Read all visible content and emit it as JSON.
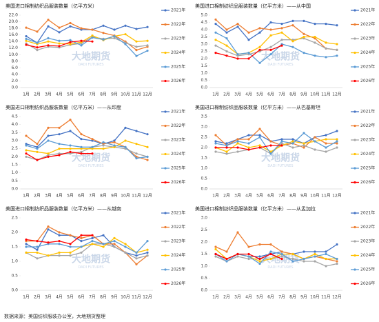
{
  "chart_data": [
    {
      "type": "line",
      "title": "美国进口棉制纺织品服装数量（亿平方米）",
      "categories": [
        "1月",
        "2月",
        "3月",
        "4月",
        "5月",
        "6月",
        "7月",
        "8月",
        "9月",
        "10月",
        "11月",
        "12月"
      ],
      "ylim": [
        0,
        22
      ],
      "yticks": [
        {
          "value": 0,
          "label": "0.0"
        },
        {
          "value": 2,
          "label": "2.0"
        },
        {
          "value": 4,
          "label": "4.0"
        },
        {
          "value": 6,
          "label": "6.0"
        },
        {
          "value": 8,
          "label": "8.0"
        },
        {
          "value": 10,
          "label": "10.0"
        },
        {
          "value": 12,
          "label": "12.0"
        },
        {
          "value": 14,
          "label": "14.0"
        },
        {
          "value": 16,
          "label": "16.0"
        },
        {
          "value": 18,
          "label": "18.0"
        },
        {
          "value": 20,
          "label": "20.0"
        },
        {
          "value": 22,
          "label": "22.0"
        }
      ],
      "legend": "right",
      "series": [
        {
          "name": "2021年",
          "color": "#4472c4",
          "values": [
            15.6,
            13.6,
            18.6,
            16.8,
            18.6,
            17.6,
            17.6,
            18.8,
            17.6,
            18.8,
            17.8,
            18.4
          ]
        },
        {
          "name": "2022年",
          "color": "#ed7d31",
          "values": [
            18.2,
            17.0,
            20.6,
            18.2,
            19.6,
            18.0,
            17.6,
            16.6,
            15.8,
            14.0,
            11.4,
            12.4
          ]
        },
        {
          "name": "2023年",
          "color": "#a5a5a5",
          "values": [
            13.4,
            11.4,
            12.4,
            12.2,
            13.0,
            13.4,
            15.4,
            14.8,
            15.0,
            13.6,
            12.4,
            12.8
          ]
        },
        {
          "name": "2024年",
          "color": "#ffc000",
          "values": [
            14.2,
            13.2,
            14.0,
            13.4,
            13.2,
            13.8,
            15.8,
            14.4,
            15.6,
            16.2,
            14.0,
            14.2
          ]
        },
        {
          "name": "2025年",
          "color": "#5b9bd5",
          "values": [
            14.8,
            13.6,
            15.0,
            14.2,
            14.4,
            12.8,
            15.2,
            14.6,
            15.6,
            13.2,
            9.6,
            11.2
          ]
        },
        {
          "name": "2026年",
          "color": "#ff0000",
          "values": [
            13.0,
            12.2,
            12.8,
            12.6,
            13.8,
            14.2,
            14.0,
            null,
            null,
            null,
            null,
            null
          ]
        }
      ]
    },
    {
      "type": "line",
      "title": "美国进口棉制纺织品服装数量（亿平方米）——从中国",
      "categories": [
        "1月",
        "2月",
        "3月",
        "4月",
        "5月",
        "6月",
        "7月",
        "8月",
        "9月",
        "10月",
        "11月",
        "12月"
      ],
      "ylim": [
        0,
        5
      ],
      "yticks": [
        {
          "value": 0,
          "label": "0.0"
        },
        0.5,
        {
          "value": 1,
          "label": "1.0"
        },
        1.5,
        {
          "value": 2,
          "label": "2.0"
        },
        2.5,
        {
          "value": 3,
          "label": "3.0"
        },
        3.5,
        {
          "value": 4,
          "label": "4.0"
        },
        4.5,
        {
          "value": 5,
          "label": "5.0"
        }
      ],
      "legend": "right",
      "series": [
        {
          "name": "2021年",
          "color": "#4472c4",
          "values": [
            4.4,
            3.8,
            4.2,
            3.3,
            3.8,
            4.5,
            4.4,
            4.6,
            4.6,
            4.4,
            4.4,
            4.3
          ]
        },
        {
          "name": "2022年",
          "color": "#ed7d31",
          "values": [
            4.7,
            4.0,
            4.4,
            3.8,
            4.1,
            4.0,
            4.1,
            4.3,
            3.7,
            3.4,
            2.7,
            2.6
          ]
        },
        {
          "name": "2023年",
          "color": "#a5a5a5",
          "values": [
            2.9,
            2.5,
            2.2,
            2.3,
            2.5,
            2.8,
            3.3,
            3.3,
            3.4,
            3.1,
            2.7,
            2.6
          ]
        },
        {
          "name": "2024年",
          "color": "#ffc000",
          "values": [
            3.3,
            2.9,
            2.3,
            2.4,
            2.8,
            3.6,
            3.8,
            3.2,
            3.5,
            3.5,
            3.1,
            3.0
          ]
        },
        {
          "name": "2025年",
          "color": "#5b9bd5",
          "values": [
            3.8,
            3.4,
            2.3,
            2.4,
            1.7,
            2.3,
            3.0,
            2.8,
            2.4,
            2.2,
            2.1,
            2.2
          ]
        },
        {
          "name": "2026年",
          "color": "#ff0000",
          "values": [
            2.4,
            2.2,
            2.0,
            2.0,
            2.6,
            2.6,
            2.9,
            null,
            null,
            null,
            null,
            null
          ]
        }
      ]
    },
    {
      "type": "line",
      "title": "美国进口棉制纺织品服装数量（亿平方米）——从印度",
      "categories": [
        "1月",
        "2月",
        "3月",
        "4月",
        "5月",
        "6月",
        "7月",
        "8月",
        "9月",
        "10月",
        "11月",
        "12月"
      ],
      "ylim": [
        0,
        4.5
      ],
      "yticks": [
        {
          "value": 0,
          "label": "0.0"
        },
        0.5,
        {
          "value": 1,
          "label": "1.0"
        },
        1.5,
        {
          "value": 2,
          "label": "2.0"
        },
        2.5,
        {
          "value": 3,
          "label": "3.0"
        },
        3.5,
        {
          "value": 4,
          "label": "4.0"
        },
        4.5
      ],
      "legend": "right",
      "series": [
        {
          "name": "2021年",
          "color": "#4472c4",
          "values": [
            2.8,
            2.6,
            3.3,
            3.4,
            3.6,
            3.1,
            3.0,
            2.8,
            3.0,
            3.8,
            3.6,
            3.4
          ]
        },
        {
          "name": "2022年",
          "color": "#ed7d31",
          "values": [
            3.3,
            2.8,
            3.8,
            3.8,
            4.3,
            3.4,
            3.1,
            2.8,
            2.9,
            2.6,
            2.0,
            1.8
          ]
        },
        {
          "name": "2023年",
          "color": "#a5a5a5",
          "values": [
            2.0,
            1.8,
            2.1,
            2.2,
            2.2,
            2.3,
            2.6,
            2.7,
            2.6,
            2.5,
            2.2,
            2.0
          ]
        },
        {
          "name": "2024年",
          "color": "#ffc000",
          "values": [
            2.4,
            2.3,
            2.2,
            2.5,
            2.5,
            2.5,
            2.5,
            2.5,
            2.6,
            3.0,
            2.8,
            2.6
          ]
        },
        {
          "name": "2025年",
          "color": "#5b9bd5",
          "values": [
            2.7,
            2.5,
            3.0,
            2.8,
            2.7,
            2.6,
            2.6,
            2.9,
            2.7,
            2.6,
            1.9,
            2.0
          ]
        },
        {
          "name": "2026年",
          "color": "#ff0000",
          "values": [
            2.2,
            1.8,
            2.0,
            2.1,
            2.3,
            2.2,
            2.2,
            null,
            null,
            null,
            null,
            null
          ]
        }
      ]
    },
    {
      "type": "line",
      "title": "美国进口棉制纺织品服装数量（亿平方米）——从巴基斯坦",
      "categories": [
        "1月",
        "2月",
        "3月",
        "4月",
        "5月",
        "6月",
        "7月",
        "8月",
        "9月",
        "10月",
        "11月",
        "12月"
      ],
      "ylim": [
        0,
        3.5
      ],
      "yticks": [
        {
          "value": 0,
          "label": "0.0"
        },
        0.5,
        {
          "value": 1,
          "label": "1.0"
        },
        1.5,
        {
          "value": 2,
          "label": "2.0"
        },
        2.5,
        {
          "value": 3,
          "label": "3.0"
        },
        3.5
      ],
      "legend": "right",
      "series": [
        {
          "name": "2021年",
          "color": "#4472c4",
          "values": [
            2.3,
            2.2,
            2.4,
            2.6,
            2.6,
            2.3,
            2.4,
            2.4,
            2.2,
            2.5,
            2.6,
            2.8
          ]
        },
        {
          "name": "2022年",
          "color": "#ed7d31",
          "values": [
            2.6,
            2.1,
            2.4,
            2.4,
            2.9,
            2.3,
            2.1,
            2.2,
            2.0,
            2.5,
            2.2,
            2.2
          ]
        },
        {
          "name": "2023年",
          "color": "#a5a5a5",
          "values": [
            1.8,
            1.7,
            1.8,
            1.9,
            2.0,
            1.7,
            2.2,
            2.0,
            2.1,
            1.9,
            1.8,
            2.0
          ]
        },
        {
          "name": "2024年",
          "color": "#ffc000",
          "values": [
            2.0,
            1.8,
            2.2,
            2.0,
            2.1,
            1.8,
            2.1,
            2.3,
            2.2,
            2.3,
            2.4,
            2.4
          ]
        },
        {
          "name": "2025年",
          "color": "#5b9bd5",
          "values": [
            2.2,
            2.1,
            2.3,
            2.2,
            2.5,
            1.7,
            2.3,
            2.2,
            2.7,
            2.3,
            2.0,
            2.3
          ]
        },
        {
          "name": "2026年",
          "color": "#ff0000",
          "values": [
            2.0,
            2.0,
            2.0,
            1.9,
            2.0,
            2.1,
            2.1,
            null,
            null,
            null,
            null,
            null
          ]
        }
      ]
    },
    {
      "type": "line",
      "title": "美国进口棉制纺织品服装数量（亿平方米）——从越南",
      "categories": [
        "1月",
        "2月",
        "3月",
        "4月",
        "5月",
        "6月",
        "7月",
        "8月",
        "9月",
        "10月",
        "11月",
        "12月"
      ],
      "ylim": [
        0,
        2.5
      ],
      "yticks": [
        {
          "value": 0,
          "label": "0.0"
        },
        0.5,
        {
          "value": 1,
          "label": "1.0"
        },
        1.5,
        {
          "value": 2,
          "label": "2.0"
        },
        2.5
      ],
      "legend": "right",
      "series": [
        {
          "name": "2021年",
          "color": "#4472c4",
          "values": [
            1.6,
            1.4,
            2.1,
            1.9,
            1.9,
            1.7,
            1.8,
            1.9,
            1.5,
            1.3,
            1.2,
            1.3
          ]
        },
        {
          "name": "2022年",
          "color": "#ed7d31",
          "values": [
            1.7,
            1.7,
            2.2,
            2.0,
            1.9,
            1.8,
            1.9,
            1.6,
            1.6,
            1.3,
            0.9,
            1.2
          ]
        },
        {
          "name": "2023年",
          "color": "#a5a5a5",
          "values": [
            1.3,
            1.1,
            1.2,
            1.2,
            1.2,
            1.3,
            1.6,
            1.6,
            1.5,
            1.3,
            1.1,
            1.2
          ]
        },
        {
          "name": "2024年",
          "color": "#ffc000",
          "values": [
            1.3,
            1.3,
            1.2,
            1.3,
            1.3,
            1.5,
            1.6,
            1.5,
            1.8,
            1.6,
            1.3,
            1.4
          ]
        },
        {
          "name": "2025年",
          "color": "#5b9bd5",
          "values": [
            1.5,
            1.5,
            1.6,
            1.6,
            1.5,
            1.5,
            1.7,
            1.6,
            1.7,
            1.5,
            1.3,
            1.7
          ]
        },
        {
          "name": "2026年",
          "color": "#ff0000",
          "values": [
            1.75,
            1.7,
            1.65,
            1.7,
            1.6,
            1.9,
            1.9,
            null,
            null,
            null,
            null,
            null
          ]
        }
      ]
    },
    {
      "type": "line",
      "title": "美国进口棉制纺织品服装数量（亿平方米）——从孟加拉",
      "categories": [
        "1月",
        "2月",
        "3月",
        "4月",
        "5月",
        "6月",
        "7月",
        "8月",
        "9月",
        "10月",
        "11月",
        "12月"
      ],
      "ylim": [
        0,
        3
      ],
      "yticks": [
        {
          "value": 0,
          "label": "0.0"
        },
        0.5,
        {
          "value": 1,
          "label": "1.0"
        },
        1.5,
        {
          "value": 2,
          "label": "2.0"
        },
        2.5,
        {
          "value": 3,
          "label": "3.0"
        }
      ],
      "legend": "right",
      "series": [
        {
          "name": "2021年",
          "color": "#4472c4",
          "values": [
            1.5,
            1.3,
            1.5,
            1.4,
            1.4,
            1.5,
            1.6,
            1.5,
            1.6,
            1.6,
            1.6,
            1.9
          ]
        },
        {
          "name": "2022年",
          "color": "#ed7d31",
          "values": [
            1.8,
            1.6,
            2.4,
            1.8,
            1.9,
            1.9,
            1.6,
            1.5,
            1.3,
            1.4,
            1.3,
            1.2
          ]
        },
        {
          "name": "2023年",
          "color": "#a5a5a5",
          "values": [
            1.4,
            1.2,
            1.4,
            1.3,
            1.3,
            1.3,
            1.4,
            1.3,
            1.2,
            1.2,
            1.0,
            1.1
          ]
        },
        {
          "name": "2024年",
          "color": "#ffc000",
          "values": [
            1.7,
            1.3,
            1.5,
            1.4,
            1.2,
            1.3,
            1.5,
            1.5,
            1.3,
            1.5,
            1.3,
            1.3
          ]
        },
        {
          "name": "2025年",
          "color": "#5b9bd5",
          "values": [
            1.5,
            1.2,
            1.5,
            1.4,
            1.1,
            1.6,
            1.5,
            1.2,
            1.3,
            1.4,
            1.5,
            1.3
          ]
        },
        {
          "name": "2026年",
          "color": "#ff0000",
          "values": [
            1.5,
            1.3,
            1.5,
            1.5,
            1.3,
            1.5,
            1.3,
            null,
            null,
            null,
            null,
            null
          ]
        }
      ]
    }
  ],
  "watermark": {
    "cn": "大地期货",
    "en": "DADI FUTURES"
  },
  "source": "数据来源：美国纺织服装办公室，大地期货整理"
}
